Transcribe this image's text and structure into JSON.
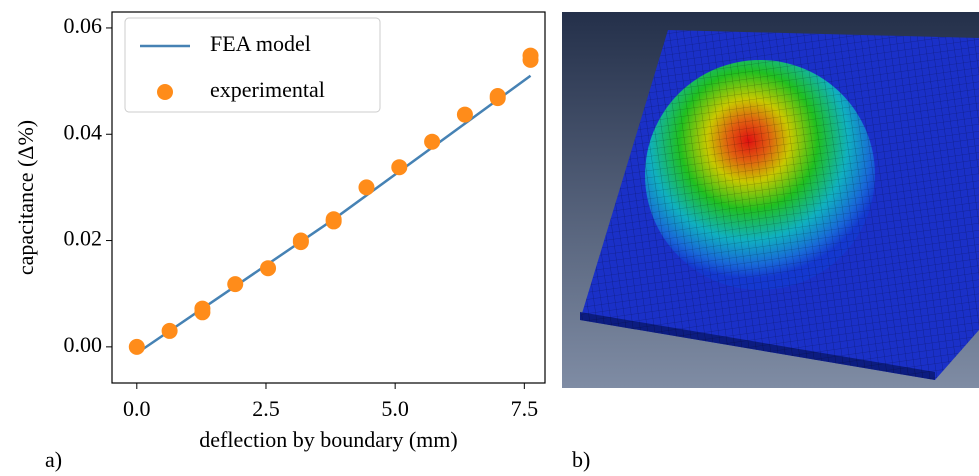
{
  "chart_data": {
    "type": "line",
    "x_label": "deflection by boundary (mm)",
    "y_label": "capacitance (Δ%)",
    "xlim": [
      -0.48,
      7.9
    ],
    "ylim": [
      -0.0068,
      0.063
    ],
    "xticks": [
      {
        "value": 0,
        "label": "0.0"
      },
      2.5,
      {
        "value": 5,
        "label": "5.0"
      },
      7.5
    ],
    "yticks": [
      {
        "value": 0,
        "label": "0.00"
      },
      {
        "value": 0.02,
        "label": "0.02"
      },
      {
        "value": 0.04,
        "label": "0.04"
      },
      {
        "value": 0.06,
        "label": "0.06"
      }
    ],
    "legend": "upper left",
    "series": [
      {
        "name": "FEA model",
        "color": "#4682b4",
        "style": "line",
        "x": [
          0,
          3.81,
          7.62
        ],
        "values": [
          -0.0012,
          0.024,
          0.051
        ]
      },
      {
        "name": "experimental",
        "color": "#ff8c1a",
        "style": "markers",
        "x": [
          0,
          0.635,
          1.27,
          1.27,
          1.905,
          2.54,
          3.175,
          3.175,
          3.81,
          3.81,
          4.445,
          5.08,
          5.715,
          6.35,
          6.985,
          6.985,
          7.62,
          7.62
        ],
        "values": [
          0.0,
          0.003,
          0.0072,
          0.0065,
          0.0118,
          0.0148,
          0.02,
          0.0197,
          0.024,
          0.0236,
          0.03,
          0.0338,
          0.0386,
          0.0437,
          0.0472,
          0.0468,
          0.0548,
          0.054
        ]
      }
    ]
  },
  "panels": {
    "a": "a)",
    "b": "b)"
  }
}
